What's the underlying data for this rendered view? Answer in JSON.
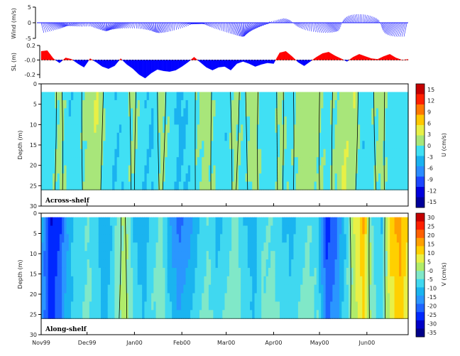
{
  "chart_data": [
    {
      "type": "line",
      "panel": "wind",
      "ylabel": "Wind (m/s)",
      "ylim": [
        -5,
        5
      ],
      "yticks": [
        "5",
        "0",
        "-5"
      ],
      "style": "stick-vector",
      "color": "#1a1aff"
    },
    {
      "type": "area",
      "panel": "sea-level",
      "ylabel": "SL (m)",
      "ylim": [
        -0.25,
        0.2
      ],
      "yticks": [
        "0.2",
        "-0.0",
        "-0.2"
      ],
      "positive_color": "#ff0000",
      "negative_color": "#0000ff",
      "x": [
        0,
        4,
        8,
        12,
        16,
        20,
        24,
        28,
        32,
        36,
        40,
        44,
        48,
        52,
        56,
        60,
        64,
        68,
        72,
        76,
        80,
        84,
        88,
        92,
        96,
        100,
        104,
        108,
        112,
        116,
        120,
        124,
        128,
        132,
        136,
        140,
        144,
        148,
        152,
        156,
        160,
        164,
        168,
        172,
        176,
        180,
        184,
        188,
        192,
        196,
        200,
        204,
        208,
        212,
        216,
        220,
        224,
        228,
        232,
        236,
        240
      ],
      "values": [
        0.12,
        0.13,
        0.02,
        -0.04,
        0.03,
        0.01,
        -0.05,
        -0.1,
        0.02,
        -0.03,
        -0.09,
        -0.12,
        -0.08,
        0.02,
        -0.06,
        -0.12,
        -0.2,
        -0.25,
        -0.18,
        -0.13,
        -0.15,
        -0.16,
        -0.14,
        -0.09,
        -0.03,
        0.04,
        -0.03,
        -0.1,
        -0.14,
        -0.1,
        -0.09,
        -0.14,
        -0.05,
        -0.02,
        -0.05,
        -0.09,
        -0.06,
        -0.04,
        -0.05,
        0.1,
        0.12,
        0.05,
        -0.03,
        -0.08,
        -0.02,
        0.04,
        0.09,
        0.11,
        0.06,
        0.02,
        -0.02,
        0.04,
        0.08,
        0.05,
        0.02,
        0.01,
        0.05,
        0.08,
        0.03,
        0.0,
        0.01
      ]
    },
    {
      "type": "heatmap",
      "panel": "across-shelf",
      "ylabel": "Depth (m)",
      "ylim": [
        0,
        30
      ],
      "yticks": [
        "0",
        "5",
        "10",
        "15",
        "20",
        "25",
        "30"
      ],
      "label": "Across-shelf",
      "colorbar_label": "U (cm/s)",
      "colorbar_ticks": [
        "15",
        "12",
        "9",
        "6",
        "3",
        "0",
        "-3",
        "-6",
        "-9",
        "-12",
        "-15"
      ],
      "levels": [
        -15,
        -12,
        -9,
        -6,
        -3,
        0,
        3,
        6,
        9,
        12,
        15
      ],
      "colors": [
        "#00009a",
        "#0000dd",
        "#1c46ff",
        "#2b8cff",
        "#1ab2f0",
        "#40e0f4",
        "#a8e67a",
        "#e8f046",
        "#ffc800",
        "#ff7800",
        "#ff2000",
        "#c40000"
      ],
      "data_depth_range": [
        2,
        26
      ],
      "x": [
        0,
        6,
        12,
        18,
        24,
        30,
        36,
        42,
        48,
        54,
        60,
        66,
        72,
        78,
        84,
        90,
        96,
        102,
        108,
        114,
        120,
        126,
        132,
        138,
        144,
        150,
        156,
        162,
        168,
        174,
        180,
        186,
        192,
        198,
        204,
        210,
        216,
        222,
        228,
        234,
        240
      ],
      "values": [
        -1.5,
        -2,
        1,
        -2.5,
        -1.5,
        2,
        3.5,
        -1,
        -2.5,
        -1.8,
        1,
        -2,
        -3,
        1.5,
        -1,
        -4,
        -2,
        0.5,
        2,
        -1.5,
        -2.5,
        1.5,
        -1,
        2.5,
        -1.5,
        -2,
        1,
        -1.5,
        1.5,
        2,
        0.8,
        -1.5,
        0.5,
        1.5,
        2.5,
        -2,
        -0.5,
        1.5,
        -2,
        -1.5,
        -1
      ],
      "bottom_values": [
        -1.5,
        -1,
        1,
        -2,
        -1,
        1,
        1.5,
        -1.5,
        -3,
        -2,
        0.5,
        -2.5,
        -3,
        0.5,
        -1.5,
        -3.5,
        -2.5,
        -0.5,
        1,
        -1,
        -2,
        0.5,
        -1.5,
        1.5,
        -1,
        -1.5,
        0.5,
        -1,
        1,
        1.5,
        0.5,
        -1,
        0.5,
        3.5,
        1,
        -2.5,
        -1,
        1,
        -1.5,
        -1,
        -1
      ]
    },
    {
      "type": "heatmap",
      "panel": "along-shelf",
      "ylabel": "Depth (m)",
      "ylim": [
        0,
        30
      ],
      "yticks": [
        "0",
        "5",
        "10",
        "15",
        "20",
        "25",
        "30"
      ],
      "label": "Along-shelf",
      "colorbar_label": "V (cm/s)",
      "colorbar_ticks": [
        "30",
        "25",
        "20",
        "15",
        "10",
        "5",
        "-0",
        "-5",
        "-10",
        "-15",
        "-20",
        "-25",
        "-30",
        "-35"
      ],
      "levels": [
        -35,
        -30,
        -25,
        -20,
        -15,
        -10,
        -5,
        0,
        5,
        10,
        15,
        20,
        25,
        30
      ],
      "colors": [
        "#00008a",
        "#0000c8",
        "#0028ff",
        "#1f64ff",
        "#2a96ff",
        "#1ab4f0",
        "#40d8f0",
        "#80e8c8",
        "#b0ec6a",
        "#e8f046",
        "#ffd000",
        "#ffa000",
        "#ff6000",
        "#ff2000",
        "#c40000"
      ],
      "data_depth_range": [
        1,
        26
      ],
      "x": [
        0,
        6,
        12,
        18,
        24,
        30,
        36,
        42,
        48,
        54,
        60,
        66,
        72,
        78,
        84,
        90,
        96,
        102,
        108,
        114,
        120,
        126,
        132,
        138,
        144,
        150,
        156,
        162,
        168,
        174,
        180,
        186,
        192,
        198,
        204,
        210,
        216,
        222,
        228,
        234,
        240
      ],
      "values": [
        -15,
        -30,
        -25,
        -12,
        -8,
        -5,
        -10,
        -15,
        -5,
        2,
        -10,
        -15,
        -8,
        -3,
        -16,
        -22,
        -18,
        -10,
        -5,
        -12,
        -8,
        -3,
        -10,
        -14,
        -6,
        -5,
        -10,
        -12,
        -8,
        -5,
        -8,
        -28,
        -22,
        -10,
        5,
        15,
        -5,
        -10,
        12,
        18,
        8
      ],
      "bottom_values": [
        -18,
        -28,
        -20,
        -10,
        -6,
        -3,
        -8,
        -12,
        -3,
        3,
        -6,
        -10,
        -5,
        -2,
        -10,
        -15,
        -12,
        -6,
        -3,
        -8,
        -5,
        -2,
        -6,
        -10,
        -4,
        -3,
        -6,
        -8,
        -5,
        -3,
        -5,
        -22,
        -18,
        -8,
        3,
        10,
        -3,
        -8,
        8,
        12,
        5
      ]
    }
  ],
  "x_axis": {
    "tick_labels": [
      "Nov99",
      "Dec99",
      "Jan00",
      "Feb00",
      "Mar00",
      "Apr00",
      "May00",
      "Jun00"
    ],
    "tick_days": [
      0,
      30,
      61,
      92,
      121,
      152,
      182,
      213
    ],
    "range_days": [
      0,
      240
    ]
  },
  "colors": {
    "background": "#ffffff",
    "frame": "#000000"
  }
}
